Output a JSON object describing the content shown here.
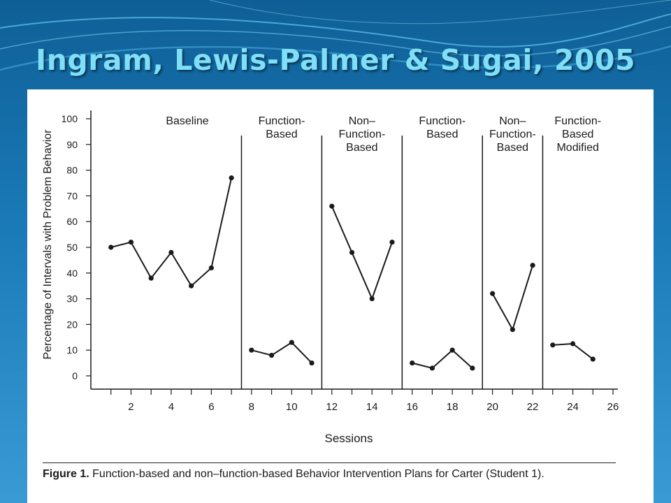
{
  "slide": {
    "title": "Ingram, Lewis-Palmer & Sugai, 2005",
    "caption_lead": "Figure 1.",
    "caption_text": "Function-based and non–function-based Behavior Intervention Plans for Carter (Student 1)."
  },
  "colors": {
    "title": "#7fdff8",
    "background": "#1a7ab8",
    "ink": "#1a1a1a"
  },
  "chart_data": {
    "type": "line",
    "title": "",
    "xlabel": "Sessions",
    "ylabel": "Percentage of Intervals with Problem Behavior",
    "xlim": [
      0,
      26
    ],
    "ylim": [
      0,
      100
    ],
    "x_ticks": [
      2,
      4,
      6,
      8,
      10,
      12,
      14,
      16,
      18,
      20,
      22,
      24,
      26
    ],
    "y_ticks": [
      0,
      10,
      20,
      30,
      40,
      50,
      60,
      70,
      80,
      90,
      100
    ],
    "phase_changes": [
      7.5,
      11.5,
      15.5,
      19.5,
      22.5
    ],
    "phases": [
      {
        "label": [
          "Baseline"
        ],
        "x": [
          1,
          2,
          3,
          4,
          5,
          6,
          7
        ],
        "y": [
          50,
          52,
          38,
          48,
          35,
          42,
          77
        ]
      },
      {
        "label": [
          "Function-",
          "Based"
        ],
        "x": [
          8,
          9,
          10,
          11
        ],
        "y": [
          10,
          8,
          13,
          5
        ]
      },
      {
        "label": [
          "Non–",
          "Function-",
          "Based"
        ],
        "x": [
          12,
          13,
          14,
          15
        ],
        "y": [
          66,
          48,
          30,
          52
        ]
      },
      {
        "label": [
          "Function-",
          "Based"
        ],
        "x": [
          16,
          17,
          18,
          19
        ],
        "y": [
          5,
          3,
          10,
          3
        ]
      },
      {
        "label": [
          "Non–",
          "Function-",
          "Based"
        ],
        "x": [
          20,
          21,
          22
        ],
        "y": [
          32,
          18,
          43
        ]
      },
      {
        "label": [
          "Function-",
          "Based",
          "Modified"
        ],
        "x": [
          23,
          24,
          25
        ],
        "y": [
          12,
          12.5,
          6.5
        ]
      }
    ],
    "grid": false,
    "legend": "none"
  }
}
